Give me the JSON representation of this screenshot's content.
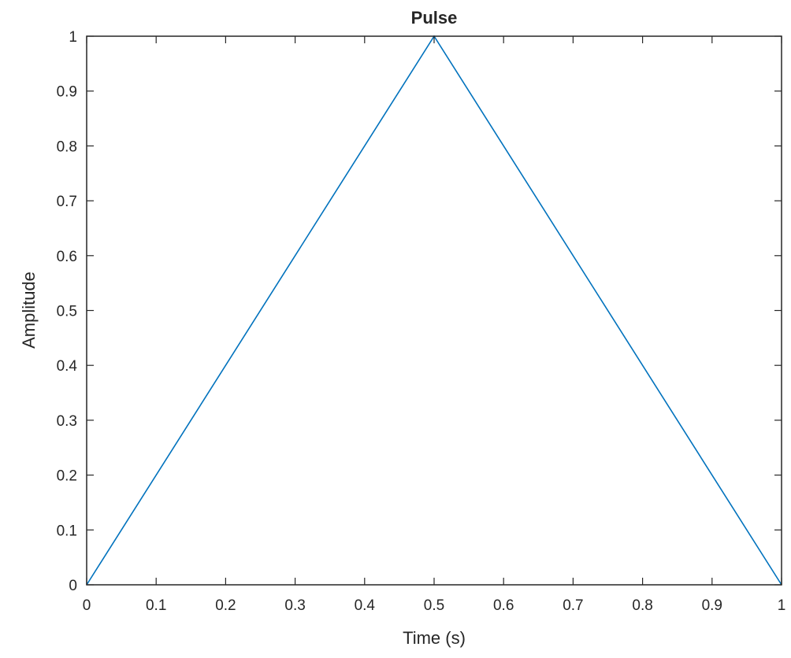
{
  "chart_data": {
    "type": "line",
    "title": "Pulse",
    "xlabel": "Time (s)",
    "ylabel": "Amplitude",
    "xlim": [
      0,
      1
    ],
    "ylim": [
      0,
      1
    ],
    "xticks": [
      "0",
      "0.1",
      "0.2",
      "0.3",
      "0.4",
      "0.5",
      "0.6",
      "0.7",
      "0.8",
      "0.9",
      "1"
    ],
    "yticks": [
      "0",
      "0.1",
      "0.2",
      "0.3",
      "0.4",
      "0.5",
      "0.6",
      "0.7",
      "0.8",
      "0.9",
      "1"
    ],
    "grid": false,
    "series": [
      {
        "color": "#0072bd",
        "x": [
          0,
          0.5,
          1
        ],
        "y": [
          0,
          1,
          0
        ]
      }
    ]
  }
}
